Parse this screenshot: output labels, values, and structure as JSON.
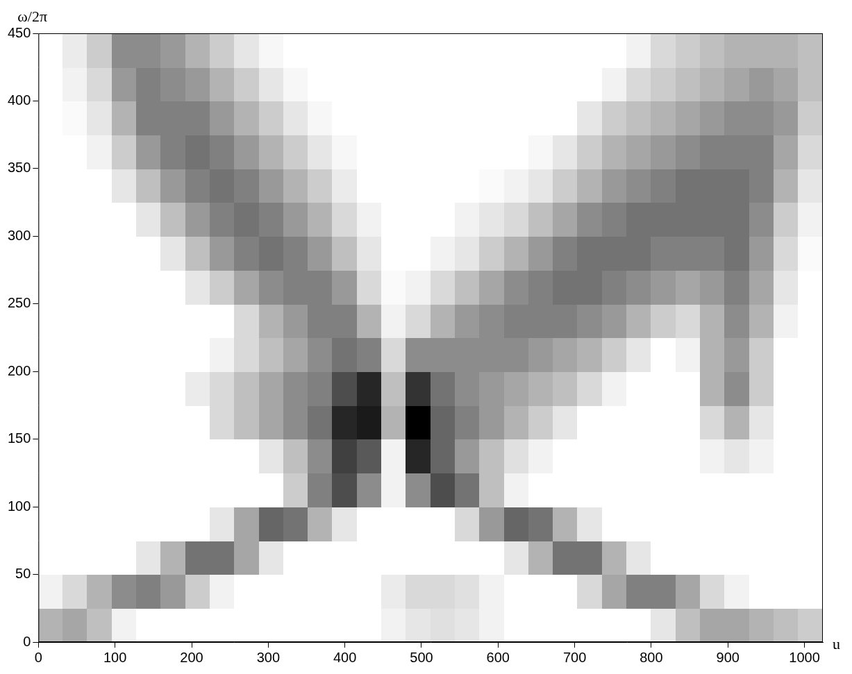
{
  "chart_data": {
    "type": "heatmap",
    "x_label": "u",
    "y_label": "ω/2π",
    "xlim": [
      0,
      1024
    ],
    "ylim": [
      0,
      450
    ],
    "xticks": [
      0,
      100,
      200,
      300,
      400,
      500,
      600,
      700,
      800,
      900,
      1000
    ],
    "yticks": [
      0,
      50,
      100,
      150,
      200,
      250,
      300,
      350,
      400,
      450
    ],
    "grid": false,
    "color": "#000000",
    "x": [
      16,
      48,
      80,
      112,
      144,
      176,
      208,
      240,
      272,
      304,
      336,
      368,
      400,
      432,
      464,
      496,
      528,
      560,
      592,
      624,
      656,
      688,
      720,
      752,
      784,
      816,
      848,
      880,
      912,
      944,
      976,
      1008
    ],
    "y": [
      12.5,
      37.5,
      62.5,
      87.5,
      112.5,
      137.5,
      162.5,
      187.5,
      212.5,
      237.5,
      262.5,
      287.5,
      312.5,
      337.5,
      362.5,
      387.5,
      412.5,
      437.5
    ],
    "cells": [
      [
        0.3,
        0.35,
        0.25,
        0.05,
        0,
        0,
        0,
        0,
        0,
        0,
        0,
        0,
        0,
        0,
        0.05,
        0.1,
        0.12,
        0.1,
        0.05,
        0,
        0,
        0,
        0,
        0,
        0,
        0.1,
        0.25,
        0.35,
        0.35,
        0.3,
        0.25,
        0.2
      ],
      [
        0.05,
        0.15,
        0.3,
        0.45,
        0.5,
        0.4,
        0.2,
        0.05,
        0,
        0,
        0,
        0,
        0,
        0,
        0.08,
        0.15,
        0.15,
        0.12,
        0.05,
        0,
        0,
        0,
        0.15,
        0.35,
        0.5,
        0.5,
        0.35,
        0.15,
        0.05,
        0,
        0,
        0
      ],
      [
        0,
        0,
        0,
        0,
        0.1,
        0.3,
        0.55,
        0.55,
        0.35,
        0.1,
        0,
        0,
        0,
        0,
        0,
        0,
        0,
        0,
        0,
        0.1,
        0.3,
        0.55,
        0.55,
        0.3,
        0.1,
        0,
        0,
        0,
        0,
        0,
        0,
        0
      ],
      [
        0,
        0,
        0,
        0,
        0,
        0,
        0,
        0.1,
        0.35,
        0.6,
        0.55,
        0.3,
        0.1,
        0,
        0,
        0,
        0,
        0.15,
        0.4,
        0.6,
        0.55,
        0.3,
        0.1,
        0,
        0,
        0,
        0,
        0,
        0,
        0,
        0,
        0
      ],
      [
        0,
        0,
        0,
        0,
        0,
        0,
        0,
        0,
        0,
        0,
        0.2,
        0.5,
        0.7,
        0.45,
        0.05,
        0.45,
        0.7,
        0.55,
        0.25,
        0.05,
        0,
        0,
        0,
        0,
        0,
        0,
        0,
        0,
        0,
        0,
        0,
        0
      ],
      [
        0,
        0,
        0,
        0,
        0,
        0,
        0,
        0,
        0,
        0.1,
        0.25,
        0.45,
        0.75,
        0.65,
        0.05,
        0.85,
        0.6,
        0.4,
        0.25,
        0.12,
        0.05,
        0,
        0,
        0,
        0,
        0,
        0,
        0.05,
        0.1,
        0.05,
        0,
        0
      ],
      [
        0,
        0,
        0,
        0,
        0,
        0,
        0,
        0.15,
        0.25,
        0.35,
        0.45,
        0.55,
        0.85,
        0.9,
        0.3,
        1.0,
        0.6,
        0.5,
        0.4,
        0.3,
        0.2,
        0.1,
        0,
        0,
        0,
        0,
        0,
        0.15,
        0.3,
        0.1,
        0,
        0
      ],
      [
        0,
        0,
        0,
        0,
        0,
        0,
        0.08,
        0.15,
        0.25,
        0.35,
        0.45,
        0.5,
        0.7,
        0.85,
        0.25,
        0.8,
        0.55,
        0.45,
        0.4,
        0.35,
        0.3,
        0.25,
        0.15,
        0.05,
        0,
        0,
        0,
        0.3,
        0.45,
        0.2,
        0,
        0
      ],
      [
        0,
        0,
        0,
        0,
        0,
        0,
        0,
        0.05,
        0.15,
        0.25,
        0.35,
        0.45,
        0.55,
        0.5,
        0.15,
        0.45,
        0.45,
        0.45,
        0.45,
        0.45,
        0.4,
        0.35,
        0.3,
        0.2,
        0.1,
        0,
        0.05,
        0.3,
        0.4,
        0.2,
        0,
        0
      ],
      [
        0,
        0,
        0,
        0,
        0,
        0,
        0,
        0,
        0.15,
        0.3,
        0.4,
        0.5,
        0.5,
        0.3,
        0.05,
        0.15,
        0.3,
        0.4,
        0.45,
        0.5,
        0.5,
        0.5,
        0.45,
        0.4,
        0.3,
        0.2,
        0.15,
        0.3,
        0.45,
        0.3,
        0.05,
        0
      ],
      [
        0,
        0,
        0,
        0,
        0,
        0,
        0.1,
        0.2,
        0.35,
        0.45,
        0.5,
        0.5,
        0.4,
        0.15,
        0.02,
        0.05,
        0.15,
        0.25,
        0.35,
        0.45,
        0.5,
        0.55,
        0.55,
        0.5,
        0.45,
        0.4,
        0.35,
        0.4,
        0.5,
        0.35,
        0.1,
        0
      ],
      [
        0,
        0,
        0,
        0,
        0,
        0.1,
        0.25,
        0.4,
        0.5,
        0.55,
        0.5,
        0.4,
        0.25,
        0.1,
        0,
        0,
        0.05,
        0.1,
        0.2,
        0.3,
        0.4,
        0.5,
        0.55,
        0.55,
        0.55,
        0.5,
        0.5,
        0.5,
        0.55,
        0.4,
        0.15,
        0.02
      ],
      [
        0,
        0,
        0,
        0,
        0.1,
        0.25,
        0.4,
        0.5,
        0.55,
        0.5,
        0.4,
        0.3,
        0.15,
        0.05,
        0,
        0,
        0,
        0.05,
        0.1,
        0.15,
        0.25,
        0.35,
        0.45,
        0.5,
        0.55,
        0.55,
        0.55,
        0.55,
        0.55,
        0.45,
        0.2,
        0.05
      ],
      [
        0,
        0,
        0,
        0.1,
        0.25,
        0.4,
        0.5,
        0.55,
        0.5,
        0.4,
        0.3,
        0.2,
        0.08,
        0,
        0,
        0,
        0,
        0,
        0.02,
        0.05,
        0.1,
        0.2,
        0.3,
        0.4,
        0.45,
        0.5,
        0.55,
        0.55,
        0.55,
        0.5,
        0.3,
        0.1
      ],
      [
        0,
        0,
        0.05,
        0.2,
        0.4,
        0.5,
        0.55,
        0.5,
        0.4,
        0.3,
        0.2,
        0.1,
        0.03,
        0,
        0,
        0,
        0,
        0,
        0,
        0,
        0.03,
        0.1,
        0.2,
        0.3,
        0.35,
        0.4,
        0.45,
        0.5,
        0.5,
        0.5,
        0.35,
        0.15
      ],
      [
        0,
        0.02,
        0.1,
        0.3,
        0.5,
        0.5,
        0.5,
        0.4,
        0.3,
        0.2,
        0.1,
        0.03,
        0,
        0,
        0,
        0,
        0,
        0,
        0,
        0,
        0,
        0,
        0.1,
        0.2,
        0.25,
        0.3,
        0.35,
        0.4,
        0.45,
        0.45,
        0.4,
        0.2
      ],
      [
        0,
        0.05,
        0.15,
        0.4,
        0.5,
        0.45,
        0.4,
        0.3,
        0.2,
        0.1,
        0.03,
        0,
        0,
        0,
        0,
        0,
        0,
        0,
        0,
        0,
        0,
        0,
        0,
        0.05,
        0.15,
        0.2,
        0.25,
        0.3,
        0.35,
        0.4,
        0.35,
        0.25
      ],
      [
        0,
        0.08,
        0.2,
        0.45,
        0.45,
        0.4,
        0.3,
        0.2,
        0.1,
        0.03,
        0,
        0,
        0,
        0,
        0,
        0,
        0,
        0,
        0,
        0,
        0,
        0,
        0,
        0,
        0.05,
        0.15,
        0.2,
        0.25,
        0.3,
        0.3,
        0.3,
        0.25
      ]
    ]
  }
}
